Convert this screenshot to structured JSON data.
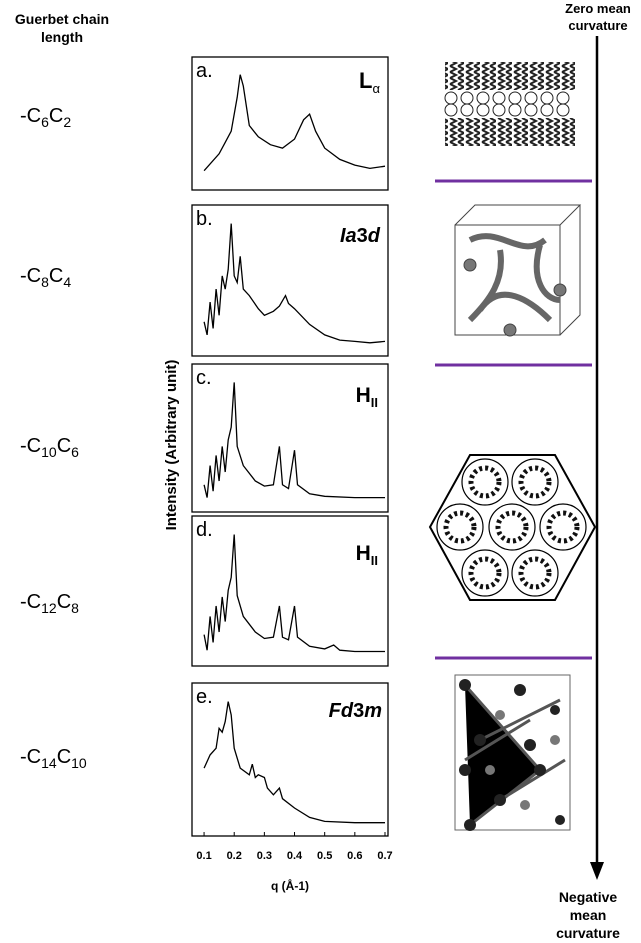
{
  "left_header": [
    "Guerbet chain",
    "length"
  ],
  "chain_labels": [
    [
      "-C",
      "6",
      "C",
      "2"
    ],
    [
      "-C",
      "8",
      "C",
      "4"
    ],
    [
      "-C",
      "10",
      "C",
      "6"
    ],
    [
      "-C",
      "12",
      "C",
      "8"
    ],
    [
      "-C",
      "14",
      "C",
      "10"
    ]
  ],
  "y_axis_label": "Intensity (Arbitrary unit)",
  "x_axis_label": "q (Å-1)",
  "right_top": [
    "Zero mean",
    "curvature"
  ],
  "right_bottom": [
    "Negative",
    "mean",
    "curvature"
  ],
  "chart_data": [
    {
      "type": "line",
      "panel_label": "a.",
      "phase": [
        "L",
        "α"
      ],
      "color": "#000000",
      "x": [
        0.1,
        0.15,
        0.17,
        0.19,
        0.21,
        0.22,
        0.23,
        0.25,
        0.28,
        0.32,
        0.36,
        0.4,
        0.43,
        0.45,
        0.47,
        0.5,
        0.55,
        0.6,
        0.65,
        0.7
      ],
      "values": [
        10,
        25,
        35,
        45,
        75,
        95,
        85,
        50,
        40,
        33,
        30,
        38,
        55,
        60,
        45,
        30,
        20,
        15,
        12,
        14
      ],
      "xlim": [
        0.06,
        0.71
      ],
      "ylim": [
        0,
        100
      ]
    },
    {
      "type": "line",
      "panel_label": "b.",
      "phase": [
        "Ia",
        "3",
        "d"
      ],
      "color": "#000000",
      "x": [
        0.1,
        0.11,
        0.12,
        0.13,
        0.14,
        0.15,
        0.16,
        0.17,
        0.18,
        0.19,
        0.2,
        0.21,
        0.22,
        0.23,
        0.25,
        0.28,
        0.3,
        0.33,
        0.35,
        0.37,
        0.38,
        0.4,
        0.45,
        0.5,
        0.55,
        0.6,
        0.65,
        0.7
      ],
      "values": [
        20,
        10,
        35,
        15,
        45,
        25,
        55,
        45,
        60,
        95,
        55,
        50,
        70,
        45,
        40,
        30,
        25,
        28,
        32,
        40,
        34,
        30,
        18,
        10,
        6,
        5,
        4,
        5
      ],
      "xlim": [
        0.06,
        0.71
      ],
      "ylim": [
        0,
        100
      ]
    },
    {
      "type": "line",
      "panel_label": "c.",
      "phase": [
        "H",
        "II"
      ],
      "color": "#000000",
      "x": [
        0.1,
        0.11,
        0.12,
        0.13,
        0.14,
        0.15,
        0.16,
        0.17,
        0.18,
        0.19,
        0.2,
        0.21,
        0.23,
        0.27,
        0.3,
        0.33,
        0.35,
        0.36,
        0.38,
        0.4,
        0.41,
        0.45,
        0.5,
        0.6,
        0.7
      ],
      "values": [
        15,
        5,
        30,
        10,
        38,
        18,
        45,
        25,
        50,
        60,
        95,
        45,
        30,
        18,
        14,
        15,
        45,
        15,
        12,
        42,
        15,
        8,
        6,
        5,
        5
      ],
      "xlim": [
        0.06,
        0.71
      ],
      "ylim": [
        0,
        100
      ]
    },
    {
      "type": "line",
      "panel_label": "d.",
      "phase": [
        "H",
        "II"
      ],
      "color": "#000000",
      "x": [
        0.1,
        0.11,
        0.12,
        0.13,
        0.14,
        0.15,
        0.16,
        0.17,
        0.18,
        0.19,
        0.2,
        0.21,
        0.23,
        0.27,
        0.3,
        0.33,
        0.35,
        0.36,
        0.38,
        0.4,
        0.41,
        0.45,
        0.5,
        0.53,
        0.55,
        0.6,
        0.7
      ],
      "values": [
        18,
        6,
        32,
        12,
        40,
        20,
        47,
        28,
        52,
        62,
        95,
        48,
        32,
        20,
        15,
        16,
        40,
        16,
        14,
        40,
        16,
        9,
        7,
        10,
        6,
        5,
        5
      ],
      "xlim": [
        0.06,
        0.71
      ],
      "ylim": [
        0,
        100
      ]
    },
    {
      "type": "line",
      "panel_label": "e.",
      "phase": [
        "Fd",
        "3",
        "m"
      ],
      "color": "#000000",
      "x": [
        0.1,
        0.12,
        0.14,
        0.15,
        0.16,
        0.17,
        0.18,
        0.19,
        0.2,
        0.22,
        0.25,
        0.26,
        0.27,
        0.28,
        0.3,
        0.31,
        0.33,
        0.35,
        0.36,
        0.4,
        0.45,
        0.5,
        0.6,
        0.7
      ],
      "values": [
        45,
        55,
        60,
        75,
        72,
        80,
        95,
        85,
        60,
        45,
        40,
        48,
        38,
        40,
        38,
        30,
        25,
        30,
        22,
        15,
        8,
        5,
        4,
        4
      ],
      "xlim": [
        0.06,
        0.71
      ],
      "ylim": [
        0,
        100
      ],
      "xticks": [
        0.1,
        0.2,
        0.3,
        0.4,
        0.5,
        0.6,
        0.7
      ]
    }
  ]
}
